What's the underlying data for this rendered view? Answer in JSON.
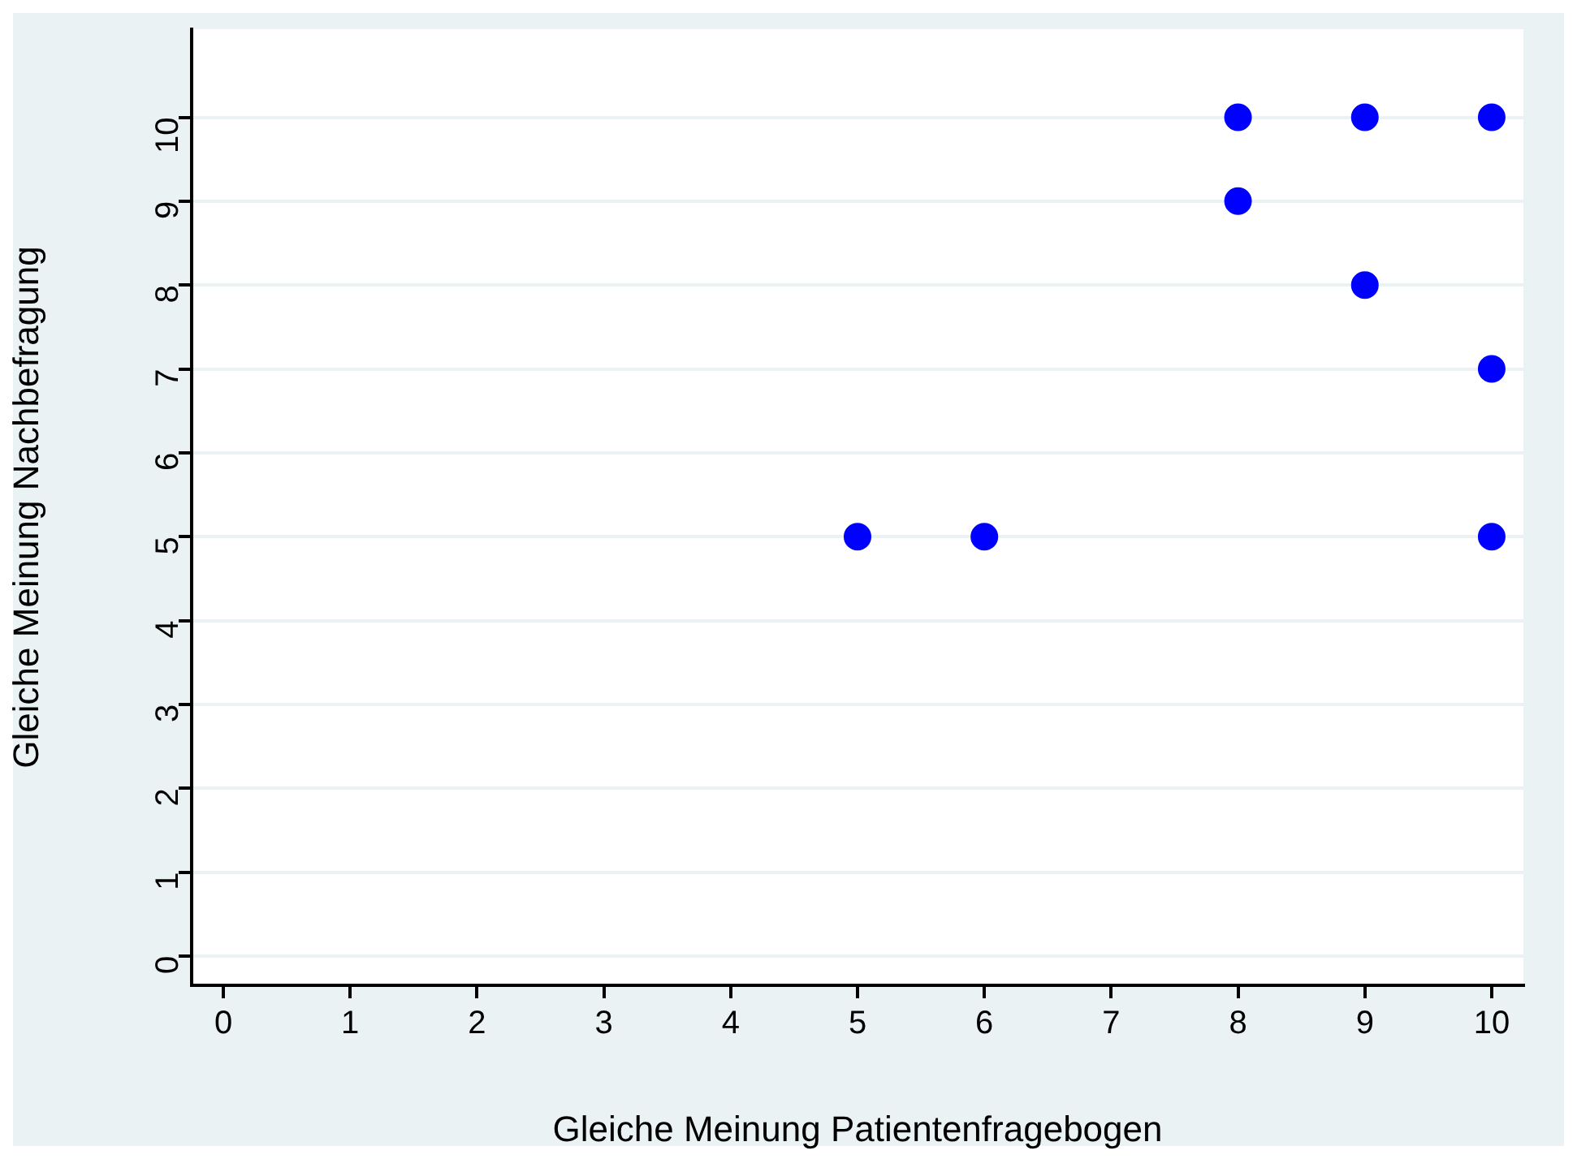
{
  "chart_data": {
    "type": "scatter",
    "xlabel": "Gleiche Meinung Patientenfragebogen",
    "ylabel": "Gleiche Meinung Nachbefragung",
    "x": [
      5,
      6,
      8,
      8,
      9,
      9,
      10,
      10,
      10
    ],
    "series": [
      {
        "color": "#0000ff",
        "values": [
          5,
          5,
          10,
          9,
          10,
          8,
          10,
          7,
          5
        ]
      }
    ],
    "xlim": [
      -0.25,
      10.25
    ],
    "xticks": [
      0,
      1,
      2,
      3,
      4,
      5,
      6,
      7,
      8,
      9,
      10
    ],
    "ylim": [
      -0.35,
      11.05
    ],
    "yticks": [
      0,
      1,
      2,
      3,
      4,
      5,
      6,
      7,
      8,
      9,
      10
    ],
    "grid": "y",
    "marker": "circle",
    "legend": false
  }
}
